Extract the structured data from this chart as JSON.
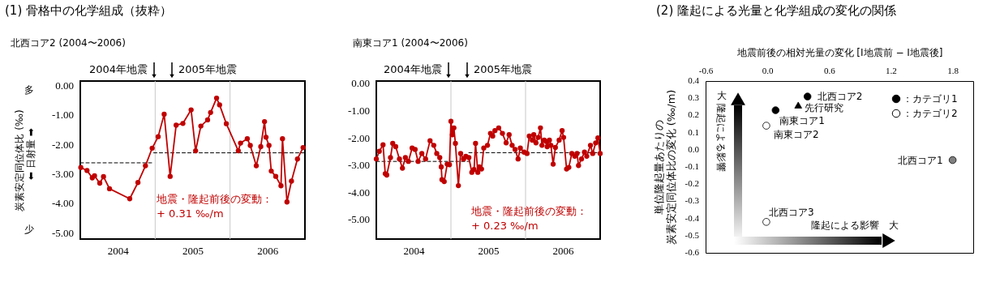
{
  "chart_data": [
    {
      "type": "line",
      "title": "(1) 骨格中の化学組成（抜粋）",
      "subtitle": "北西コア2 (2004〜2006)",
      "ylabel": "炭素安定同位体比 (‰)",
      "annotations": [
        "2004年地震",
        "2005年地震",
        "多",
        "⬅ 日射量 ➡",
        "少",
        "地震・隆起前後の変動：",
        "+ 0.31 ‰/m"
      ],
      "xlim": [
        2004,
        2007
      ],
      "xticks": [
        {
          "value": 2004.5,
          "label": "2004"
        },
        {
          "value": 2005.5,
          "label": "2005"
        },
        {
          "value": 2006.5,
          "label": "2006"
        }
      ],
      "ylim": [
        -5.2,
        0.17
      ],
      "yticks": [
        {
          "value": 0,
          "label": "0.00"
        },
        {
          "value": -1,
          "label": "-1.00"
        },
        {
          "value": -2,
          "label": "-2.00"
        },
        {
          "value": -3,
          "label": "-3.00"
        },
        {
          "value": -4,
          "label": "-4.00"
        },
        {
          "value": -5,
          "label": "-5.00"
        }
      ],
      "ref_lines": [
        {
          "axis": "x",
          "value": 2005,
          "color": "#c8c8c8"
        },
        {
          "axis": "x",
          "value": 2006,
          "color": "#c8c8c8"
        }
      ],
      "series": [
        {
          "color": "#000000",
          "line_style": "dashed",
          "x": [
            2004.0,
            2004.98
          ],
          "values": [
            -2.61,
            -2.61
          ]
        },
        {
          "color": "#000000",
          "line_style": "dashed",
          "x": [
            2004.98,
            2007.0
          ],
          "values": [
            -2.27,
            -2.27
          ]
        },
        {
          "color": "#c00000",
          "marker": "circle",
          "x": [
            2004.007,
            2004.09,
            2004.16,
            2004.19,
            2004.26,
            2004.31,
            2004.39,
            2004.66,
            2004.77,
            2004.87,
            2004.96,
            2005.04,
            2005.12,
            2005.2,
            2005.28,
            2005.37,
            2005.48,
            2005.54,
            2005.61,
            2005.7,
            2005.74,
            2005.82,
            2005.86,
            2005.95,
            2006.11,
            2006.14,
            2006.23,
            2006.27,
            2006.35,
            2006.41,
            2006.46,
            2006.48,
            2006.52,
            2006.55,
            2006.61,
            2006.68,
            2006.7,
            2006.76,
            2006.82,
            2006.9,
            2006.975
          ],
          "values": [
            -2.77,
            -2.87,
            -3.12,
            -3.05,
            -3.3,
            -3.08,
            -3.49,
            -3.83,
            -3.28,
            -2.71,
            -2.11,
            -1.72,
            -0.96,
            -3.07,
            -1.33,
            -1.27,
            -0.81,
            -2.2,
            -1.36,
            -1.15,
            -0.9,
            -0.41,
            -0.64,
            -1.28,
            -2.2,
            -1.94,
            -1.79,
            -2.02,
            -2.71,
            -2.06,
            -1.21,
            -1.74,
            -2.02,
            -2.89,
            -3.07,
            -3.39,
            -1.79,
            -3.94,
            -3.23,
            -2.48,
            -2.09
          ]
        }
      ]
    },
    {
      "type": "line",
      "subtitle": "南東コア1 (2004〜2006)",
      "annotations": [
        "2004年地震",
        "2005年地震",
        "地震・隆起前後の変動：",
        "+ 0.23 ‰/m"
      ],
      "xlim": [
        2004,
        2007
      ],
      "xticks": [
        {
          "value": 2004.5,
          "label": "2004"
        },
        {
          "value": 2005.5,
          "label": "2005"
        },
        {
          "value": 2006.5,
          "label": "2006"
        }
      ],
      "ylim": [
        -5.7,
        0.1
      ],
      "yticks": [
        {
          "value": 0,
          "label": "0.00"
        },
        {
          "value": -1,
          "label": "-1.00"
        },
        {
          "value": -2,
          "label": "-2.00"
        },
        {
          "value": -3,
          "label": "-3.00"
        },
        {
          "value": -4,
          "label": "-4.00"
        },
        {
          "value": -5,
          "label": "-5.00"
        }
      ],
      "ref_lines": [
        {
          "axis": "x",
          "value": 2005,
          "color": "#c8c8c8"
        },
        {
          "axis": "x",
          "value": 2006,
          "color": "#c8c8c8"
        }
      ],
      "series": [
        {
          "color": "#000000",
          "line_style": "dashed",
          "x": [
            2004.0,
            2005.24
          ],
          "values": [
            -2.85,
            -2.85
          ]
        },
        {
          "color": "#000000",
          "line_style": "dashed",
          "x": [
            2005.24,
            2007.0
          ],
          "values": [
            -2.53,
            -2.53
          ]
        },
        {
          "color": "#c00000",
          "marker": "circle",
          "x": [
            2004.0,
            2004.04,
            2004.09,
            2004.12,
            2004.14,
            2004.19,
            2004.22,
            2004.26,
            2004.31,
            2004.35,
            2004.39,
            2004.43,
            2004.48,
            2004.52,
            2004.56,
            2004.61,
            2004.66,
            2004.72,
            2004.77,
            2004.81,
            2004.85,
            2004.87,
            2004.88,
            2004.91,
            2004.95,
            2004.98,
            2005.0,
            2005.02,
            2005.04,
            2005.06,
            2005.1,
            2005.13,
            2005.17,
            2005.2,
            2005.24,
            2005.28,
            2005.31,
            2005.33,
            2005.36,
            2005.38,
            2005.41,
            2005.44,
            2005.49,
            2005.53,
            2005.56,
            2005.59,
            2005.64,
            2005.69,
            2005.74,
            2005.78,
            2005.82,
            2005.86,
            2005.9,
            2005.93,
            2005.98,
            2006.02,
            2006.05,
            2006.09,
            2006.11,
            2006.14,
            2006.17,
            2006.2,
            2006.22,
            2006.25,
            2006.28,
            2006.29,
            2006.32,
            2006.34,
            2006.37,
            2006.4,
            2006.45,
            2006.49,
            2006.51,
            2006.55,
            2006.58,
            2006.62,
            2006.66,
            2006.69,
            2006.71,
            2006.75,
            2006.79,
            2006.82,
            2006.87,
            2006.9,
            2006.94,
            2006.97,
            2007.0
          ],
          "values": [
            -2.76,
            -2.48,
            -2.24,
            -3.3,
            -3.35,
            -2.71,
            -2.19,
            -2.31,
            -2.76,
            -3.1,
            -2.71,
            -2.85,
            -2.36,
            -2.41,
            -2.85,
            -2.56,
            -2.76,
            -2.09,
            -2.26,
            -2.56,
            -2.71,
            -3.05,
            -3.52,
            -3.59,
            -2.95,
            -2.97,
            -1.38,
            -1.87,
            -1.62,
            -2.19,
            -3.74,
            -2.56,
            -2.76,
            -2.66,
            -2.71,
            -3.25,
            -3.15,
            -2.19,
            -3.25,
            -3.05,
            -3.13,
            -2.36,
            -2.26,
            -1.82,
            -1.92,
            -1.72,
            -1.62,
            -1.82,
            -2.17,
            -1.87,
            -2.26,
            -2.41,
            -2.76,
            -2.36,
            -2.51,
            -2.56,
            -1.92,
            -2.07,
            -1.87,
            -2.17,
            -1.97,
            -1.62,
            -2.26,
            -2.07,
            -2.12,
            -2.31,
            -2.07,
            -2.26,
            -2.95,
            -2.34,
            -2.07,
            -1.72,
            -1.97,
            -3.13,
            -3.07,
            -2.56,
            -2.66,
            -2.56,
            -3.0,
            -2.76,
            -2.51,
            -2.66,
            -2.26,
            -2.56,
            -2.17,
            -1.99,
            -2.56
          ]
        }
      ]
    },
    {
      "type": "scatter",
      "title": "(2) 隆起による光量と化学組成の変化の関係",
      "xlabel": "地震前後の相対光量の変化 [I地震前 − I地震後]",
      "ylabel": "単位隆起量あたりの炭素安定同位体比の変化 (‰/m)",
      "legend": "top right",
      "annotations": [
        {
          "text": "北西コア2",
          "x": 0.39,
          "y": 0.31
        },
        {
          "text": "南東コア1",
          "x": 0.08,
          "y": 0.23
        },
        {
          "text": "南東コア2",
          "x": -0.01,
          "y": 0.14
        },
        {
          "text": "北西コア1",
          "x": 1.8,
          "y": -0.06
        },
        {
          "text": "北西コア3",
          "x": -0.01,
          "y": -0.42
        },
        {
          "text": "先行研究",
          "x": 0.3,
          "y": 0.26
        },
        "大",
        "隆起による影響",
        "隆起による影響　大"
      ],
      "xlim": [
        -0.6,
        2.0
      ],
      "xticks": [
        -0.6,
        {
          "value": 0,
          "label": "0.0"
        },
        0.6,
        1.2,
        1.8
      ],
      "ylim": [
        -0.6,
        0.4
      ],
      "yticks": [
        0.4,
        0.3,
        0.2,
        0.1,
        {
          "value": 0,
          "label": "0.0"
        },
        -0.1,
        -0.2,
        -0.3,
        -0.4,
        -0.5,
        -0.6
      ],
      "series": [
        {
          "name": "：カテゴリ1",
          "color": "#000000",
          "marker": "circle",
          "x": [
            0.39,
            0.08
          ],
          "values": [
            0.31,
            0.23
          ]
        },
        {
          "name": "：カテゴリ2",
          "color": "#ffffff",
          "marker": "circle",
          "x": [
            -0.01,
            -0.01
          ],
          "values": [
            0.14,
            -0.42
          ]
        },
        {
          "color": "#808080",
          "marker": "circle",
          "x": [
            1.8
          ],
          "values": [
            -0.06
          ]
        },
        {
          "color": "#000000",
          "marker": "triangle",
          "x": [
            0.3
          ],
          "values": [
            0.26
          ]
        }
      ]
    }
  ]
}
